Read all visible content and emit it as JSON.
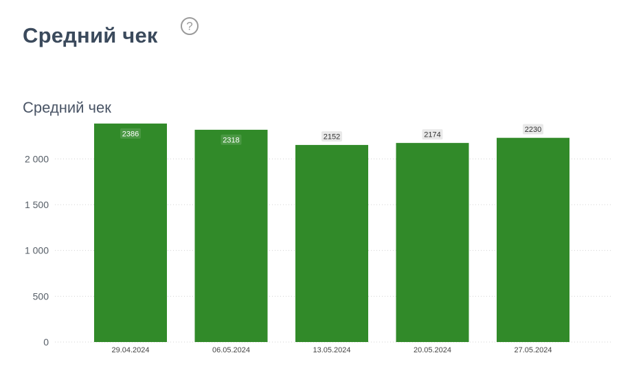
{
  "page": {
    "title": "Средний чек"
  },
  "icons": {
    "help": "question-circle-icon"
  },
  "colors": {
    "bar": "#318a29",
    "title": "#3b4a5c",
    "grid": "#d0d0d0",
    "label_bg": "#e9e9e9"
  },
  "chart_data": {
    "type": "bar",
    "title": "Средний чек",
    "categories": [
      "29.04.2024",
      "06.05.2024",
      "13.05.2024",
      "20.05.2024",
      "27.05.2024"
    ],
    "values": [
      2386,
      2318,
      2152,
      2174,
      2230
    ],
    "data_labels": [
      "2386",
      "2318",
      "2152",
      "2174",
      "2230"
    ],
    "yticks": [
      0,
      500,
      1000,
      1500,
      2000
    ],
    "ytick_labels": [
      "0",
      "500",
      "1 000",
      "1 500",
      "2 000"
    ],
    "ylim": [
      0,
      2400
    ],
    "xlabel": "",
    "ylabel": "",
    "grid": true,
    "legend": false
  }
}
